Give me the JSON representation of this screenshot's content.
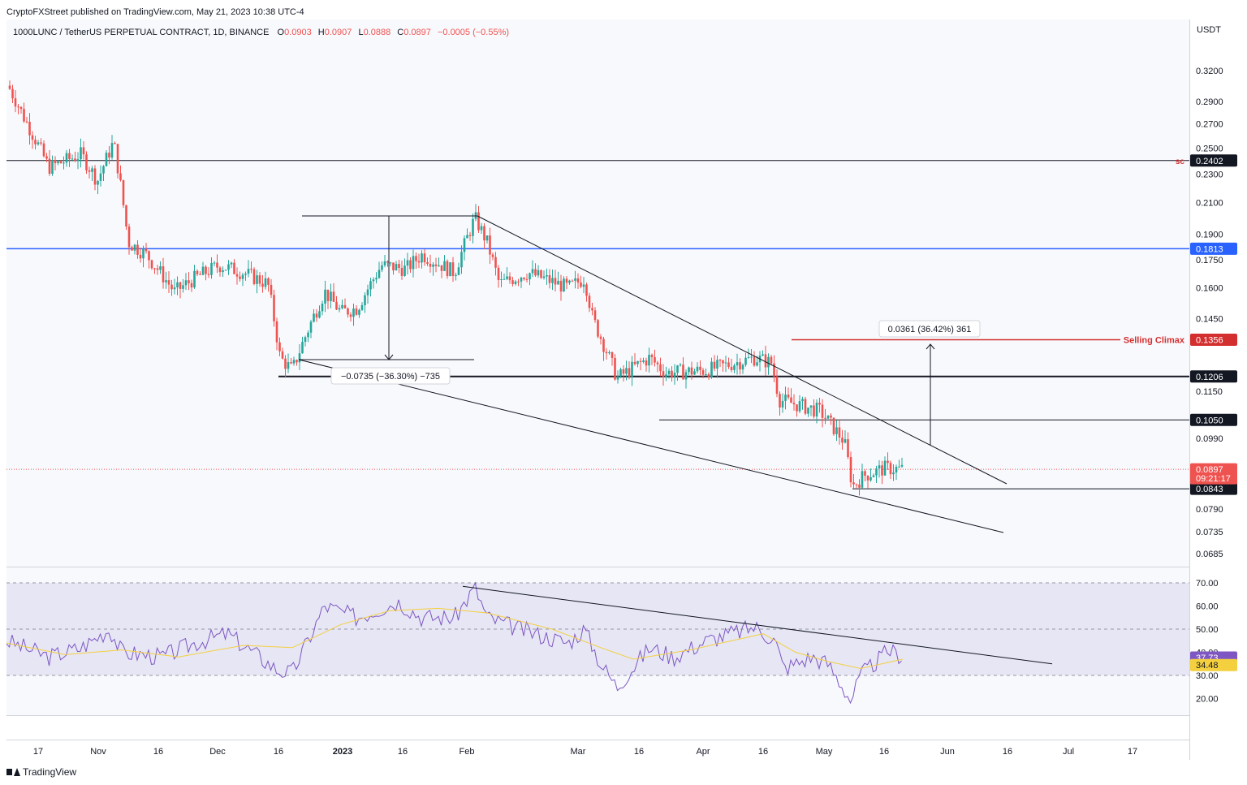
{
  "header": {
    "published": "CryptoFXStreet published on TradingView.com, May 21, 2023 10:38 UTC-4"
  },
  "legend": {
    "symbol": "1000LUNC / TetherUS PERPETUAL CONTRACT, 1D, BINANCE",
    "o_label": "O",
    "o_value": "0.0903",
    "h_label": "H",
    "h_value": "0.0907",
    "l_label": "L",
    "l_value": "0.0888",
    "c_label": "C",
    "c_value": "0.0897",
    "change": "−0.0005 (−0.55%)"
  },
  "footer": {
    "brand": "TradingView"
  },
  "colors": {
    "up": "#26a69a",
    "down": "#ef5350",
    "blue_line": "#2962ff",
    "climax": "#d32f2f",
    "rsi": "#7e57c2",
    "rsi_ma": "#f4d03f"
  },
  "chart_data": {
    "type": "candlestick",
    "price_axis": {
      "unit": "USDT",
      "ticks": [
        "0.3200",
        "0.2900",
        "0.2700",
        "0.2500",
        "0.2300",
        "0.2100",
        "0.1900",
        "0.1750",
        "0.1600",
        "0.1450",
        "0.1150",
        "0.0990",
        "0.0790",
        "0.0735",
        "0.0685"
      ]
    },
    "time_axis": {
      "labels": [
        "17",
        "Nov",
        "16",
        "Dec",
        "16",
        "2023",
        "16",
        "Feb",
        "Mar",
        "16",
        "Apr",
        "16",
        "May",
        "16",
        "Jun",
        "16",
        "Jul",
        "17"
      ],
      "bold_labels": [
        "2023"
      ]
    },
    "last_price": {
      "value": "0.0897",
      "countdown": "09:21:17"
    },
    "levels": [
      {
        "value": "0.2402",
        "label": "sc",
        "style": "black-thin"
      },
      {
        "value": "0.1813",
        "label": "",
        "style": "blue"
      },
      {
        "value": "0.1356",
        "label": "Selling Climax",
        "style": "red"
      },
      {
        "value": "0.1206",
        "label": "",
        "style": "black-thick"
      },
      {
        "value": "0.1050",
        "label": "",
        "style": "black-thin"
      },
      {
        "value": "0.0843",
        "label": "",
        "style": "black-thin"
      }
    ],
    "measurements": [
      {
        "text": "−0.0735 (−36.30%) −735"
      },
      {
        "text": "0.0361 (36.42%) 361"
      }
    ],
    "rsi": {
      "value": "37.73",
      "ma_value": "34.48",
      "ticks": [
        "70.00",
        "60.00",
        "50.00",
        "40.00",
        "30.00",
        "20.00"
      ],
      "band": [
        30,
        70
      ]
    }
  }
}
